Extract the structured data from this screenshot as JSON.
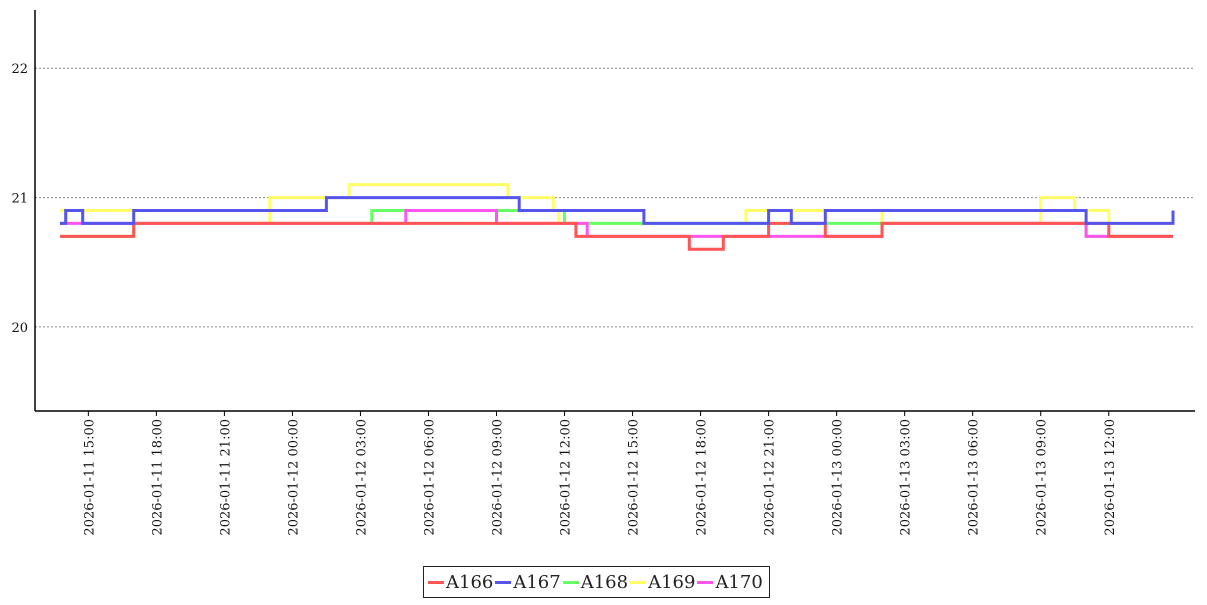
{
  "chart_data": {
    "type": "line",
    "title": "",
    "xlabel": "",
    "ylabel": "",
    "ylim": [
      19.35,
      22.45
    ],
    "yticks": [
      20,
      21,
      22
    ],
    "grid": "horizontal dotted",
    "legend_position": "bottom-center",
    "x_range": [
      "2026-01-11 13:45",
      "2026-01-13 14:50"
    ],
    "xticks": [
      "2026-01-11 15:00",
      "2026-01-11 18:00",
      "2026-01-11 21:00",
      "2026-01-12 00:00",
      "2026-01-12 03:00",
      "2026-01-12 06:00",
      "2026-01-12 09:00",
      "2026-01-12 12:00",
      "2026-01-12 15:00",
      "2026-01-12 18:00",
      "2026-01-12 21:00",
      "2026-01-13 00:00",
      "2026-01-13 03:00",
      "2026-01-13 06:00",
      "2026-01-13 09:00",
      "2026-01-13 12:00"
    ],
    "series": [
      {
        "name": "A169",
        "color": "#ffff66",
        "x": [
          "2026-01-11 13:45",
          "2026-01-11 17:00",
          "2026-01-11 23:00",
          "2026-01-12 01:00",
          "2026-01-12 02:30",
          "2026-01-12 04:00",
          "2026-01-12 06:00",
          "2026-01-12 09:30",
          "2026-01-12 10:00",
          "2026-01-12 11:30",
          "2026-01-12 11:45",
          "2026-01-12 17:00",
          "2026-01-12 20:00",
          "2026-01-13 02:00",
          "2026-01-13 09:00",
          "2026-01-13 10:30",
          "2026-01-13 12:00",
          "2026-01-13 14:50"
        ],
        "values": [
          20.9,
          20.8,
          21.0,
          21.0,
          21.1,
          21.1,
          21.1,
          21.0,
          21.0,
          20.9,
          20.8,
          20.8,
          20.9,
          20.8,
          21.0,
          20.9,
          20.8,
          20.8
        ]
      },
      {
        "name": "A168",
        "color": "#66ff66",
        "x": [
          "2026-01-11 13:45",
          "2026-01-11 17:00",
          "2026-01-12 01:00",
          "2026-01-12 03:30",
          "2026-01-12 06:00",
          "2026-01-12 09:00",
          "2026-01-12 12:00",
          "2026-01-12 18:00",
          "2026-01-13 00:00",
          "2026-01-13 06:00",
          "2026-01-13 11:00",
          "2026-01-13 14:50"
        ],
        "values": [
          20.7,
          20.8,
          20.8,
          20.9,
          20.9,
          20.9,
          20.8,
          20.8,
          20.8,
          20.8,
          20.7,
          20.7
        ]
      },
      {
        "name": "A170",
        "color": "#ff55ee",
        "x": [
          "2026-01-11 13:45",
          "2026-01-11 20:00",
          "2026-01-12 00:00",
          "2026-01-12 05:00",
          "2026-01-12 09:00",
          "2026-01-12 13:00",
          "2026-01-12 18:00",
          "2026-01-12 22:00",
          "2026-01-13 02:00",
          "2026-01-13 11:00",
          "2026-01-13 14:50"
        ],
        "values": [
          20.8,
          20.8,
          20.8,
          20.9,
          20.8,
          20.7,
          20.7,
          20.7,
          20.8,
          20.7,
          20.7
        ]
      },
      {
        "name": "A166",
        "color": "#ff5555",
        "x": [
          "2026-01-11 13:45",
          "2026-01-11 16:30",
          "2026-01-11 17:00",
          "2026-01-11 22:00",
          "2026-01-12 12:00",
          "2026-01-12 12:30",
          "2026-01-12 16:00",
          "2026-01-12 17:30",
          "2026-01-12 19:00",
          "2026-01-12 21:00",
          "2026-01-12 23:30",
          "2026-01-13 02:00",
          "2026-01-13 10:30",
          "2026-01-13 12:00",
          "2026-01-13 14:50"
        ],
        "values": [
          20.7,
          20.7,
          20.8,
          20.8,
          20.8,
          20.7,
          20.7,
          20.6,
          20.7,
          20.8,
          20.7,
          20.8,
          20.8,
          20.7,
          20.7
        ]
      },
      {
        "name": "A167",
        "color": "#5555ee",
        "x": [
          "2026-01-11 13:45",
          "2026-01-11 14:00",
          "2026-01-11 14:45",
          "2026-01-11 17:00",
          "2026-01-12 01:00",
          "2026-01-12 01:30",
          "2026-01-12 09:30",
          "2026-01-12 10:00",
          "2026-01-12 15:00",
          "2026-01-12 15:30",
          "2026-01-12 18:00",
          "2026-01-12 21:00",
          "2026-01-12 22:00",
          "2026-01-12 23:30",
          "2026-01-13 10:30",
          "2026-01-13 11:00",
          "2026-01-13 12:00",
          "2026-01-13 14:50"
        ],
        "values": [
          20.8,
          20.9,
          20.8,
          20.9,
          20.9,
          21.0,
          21.0,
          20.9,
          20.9,
          20.8,
          20.8,
          20.9,
          20.8,
          20.9,
          20.9,
          20.8,
          20.8,
          20.9
        ]
      }
    ]
  }
}
